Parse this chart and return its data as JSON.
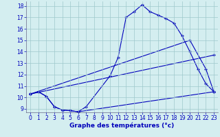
{
  "line1_x": [
    0,
    1,
    2,
    3,
    4,
    5,
    6,
    7,
    10,
    11,
    12,
    13,
    14,
    15,
    16,
    17,
    18,
    19,
    20,
    21,
    22,
    23
  ],
  "line1_y": [
    10.3,
    10.5,
    10.1,
    9.2,
    8.9,
    8.85,
    8.75,
    9.2,
    11.9,
    13.5,
    17.0,
    17.5,
    18.1,
    17.5,
    17.2,
    16.9,
    16.5,
    15.4,
    14.0,
    12.5,
    11.2,
    10.5
  ],
  "line2_x": [
    0,
    1,
    2,
    3,
    4,
    5,
    6,
    23
  ],
  "line2_y": [
    10.3,
    10.5,
    10.1,
    9.2,
    8.9,
    8.85,
    8.75,
    10.5
  ],
  "line3_x": [
    0,
    20,
    22,
    23
  ],
  "line3_y": [
    10.3,
    15.0,
    12.5,
    10.5
  ],
  "line4_x": [
    0,
    23
  ],
  "line4_y": [
    10.3,
    13.7
  ],
  "xlim_min": -0.5,
  "xlim_max": 23.5,
  "ylim_min": 8.7,
  "ylim_max": 18.4,
  "xticks": [
    0,
    1,
    2,
    3,
    4,
    5,
    6,
    7,
    8,
    9,
    10,
    11,
    12,
    13,
    14,
    15,
    16,
    17,
    18,
    19,
    20,
    21,
    22,
    23
  ],
  "yticks": [
    9,
    10,
    11,
    12,
    13,
    14,
    15,
    16,
    17,
    18
  ],
  "xlabel": "Graphe des températures (°c)",
  "line_color": "#0000bb",
  "bg_color": "#d4eef0",
  "grid_color": "#9ec8cc",
  "tick_fontsize": 5.5,
  "label_fontsize": 6.5
}
